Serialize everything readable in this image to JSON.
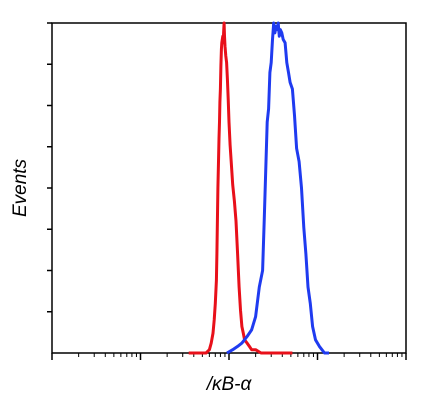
{
  "chart_data": {
    "type": "line",
    "title": "",
    "xlabel": "/κB-α",
    "ylabel": "Events",
    "x_scale": "log",
    "xlim": [
      1,
      10000
    ],
    "ylim": [
      0,
      100
    ],
    "grid": false,
    "legend": "none",
    "series": [
      {
        "color": "#e8101a",
        "x": [
          35,
          45,
          55,
          60,
          63,
          66,
          68,
          70,
          72,
          73,
          74,
          75,
          76,
          77,
          78,
          79,
          80,
          81,
          82,
          83,
          84,
          85,
          86,
          87,
          88,
          89,
          90,
          92,
          94,
          96,
          98,
          100,
          103,
          106,
          110,
          115,
          120,
          125,
          130,
          135,
          140,
          145,
          150,
          160,
          170,
          180,
          200,
          230,
          260,
          300,
          360,
          430,
          520
        ],
        "y": [
          0,
          0,
          0,
          1,
          3,
          6,
          10,
          15,
          22,
          30,
          40,
          50,
          58,
          65,
          70,
          76,
          80,
          87,
          92,
          94,
          95,
          96,
          94,
          97,
          100,
          96,
          93,
          90,
          88,
          83,
          77,
          70,
          63,
          58,
          51,
          46,
          40,
          30,
          20,
          13,
          8,
          6,
          4,
          3,
          2,
          1,
          1,
          0,
          0,
          0,
          0,
          0,
          0
        ]
      },
      {
        "color": "#1f3bf0",
        "x": [
          95,
          110,
          125,
          140,
          160,
          180,
          200,
          220,
          240,
          250,
          260,
          270,
          280,
          290,
          300,
          310,
          320,
          330,
          340,
          350,
          360,
          370,
          380,
          395,
          410,
          430,
          450,
          470,
          490,
          520,
          550,
          580,
          620,
          660,
          700,
          740,
          780,
          830,
          880,
          950,
          1050,
          1200,
          1350
        ],
        "y": [
          0,
          1,
          2,
          3,
          5,
          7,
          11,
          20,
          25,
          40,
          55,
          70,
          74,
          85,
          88,
          95,
          100,
          97,
          99,
          98,
          100,
          96,
          98,
          97,
          95,
          94,
          88,
          85,
          82,
          80,
          72,
          62,
          58,
          50,
          38,
          30,
          20,
          15,
          8,
          4,
          2,
          0,
          0
        ]
      }
    ]
  }
}
